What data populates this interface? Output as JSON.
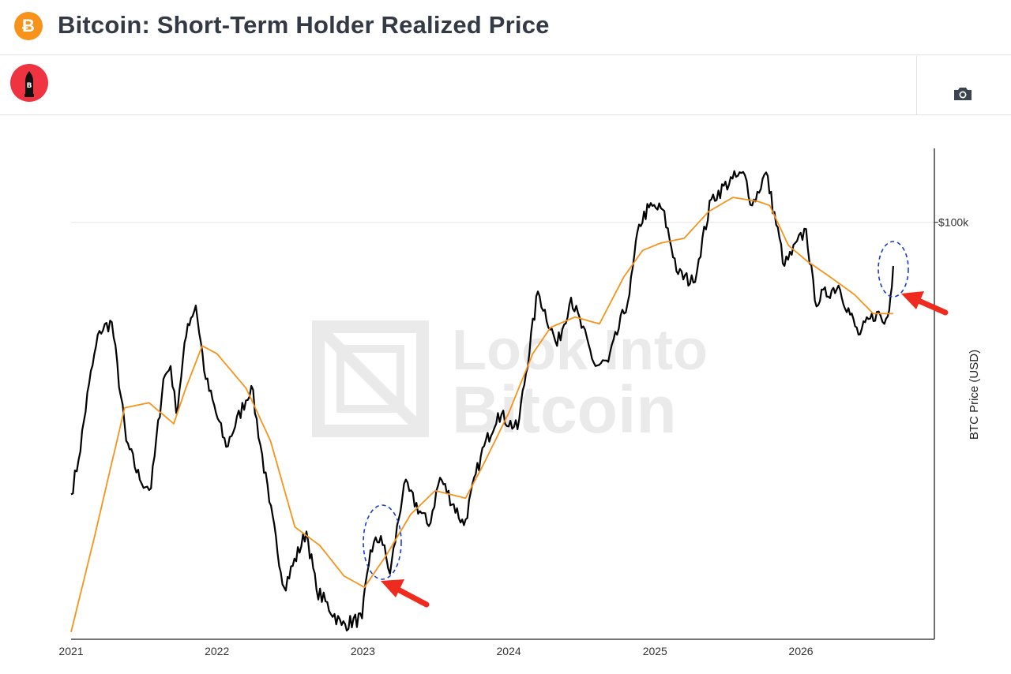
{
  "header": {
    "title": "Bitcoin: Short-Term Holder Realized Price",
    "logo_glyph": "Ƀ",
    "logo_icon": "bitcoin-icon",
    "accent": "#f7931a"
  },
  "toolbar": {
    "brand_icon": "bullet-logo-icon",
    "brand_color": "#ef3340",
    "camera_icon": "camera-icon"
  },
  "chart_data": {
    "type": "line",
    "ylabel": "BTC Price (USD)",
    "yscale": "log",
    "ylim": [
      15000,
      140000
    ],
    "xlim": [
      "2021-01-01",
      "2026-12-01"
    ],
    "y_ticks": [
      {
        "value": 100000,
        "label": "$100k"
      }
    ],
    "x_ticks": [
      "2021",
      "2022",
      "2023",
      "2024",
      "2025",
      "2026"
    ],
    "grid": true,
    "legend": "none",
    "watermark": [
      "Look Into",
      "Bitcoin"
    ],
    "series": [
      {
        "color": "#000000",
        "x": [
          "2021-01-01",
          "2021-01-20",
          "2021-02-15",
          "2021-03-13",
          "2021-04-13",
          "2021-05-19",
          "2021-06-22",
          "2021-07-20",
          "2021-08-20",
          "2021-09-07",
          "2021-09-21",
          "2021-10-20",
          "2021-11-09",
          "2021-12-04",
          "2022-01-24",
          "2022-03-28",
          "2022-05-12",
          "2022-06-18",
          "2022-08-13",
          "2022-09-07",
          "2022-11-09",
          "2022-12-30",
          "2023-01-20",
          "2023-02-15",
          "2023-03-10",
          "2023-04-14",
          "2023-06-15",
          "2023-07-13",
          "2023-09-11",
          "2023-10-23",
          "2023-12-05",
          "2024-01-23",
          "2024-03-14",
          "2024-05-01",
          "2024-06-05",
          "2024-08-05",
          "2024-09-06",
          "2024-10-29",
          "2024-11-22",
          "2024-12-17",
          "2025-01-20",
          "2025-02-28",
          "2025-04-07",
          "2025-05-22",
          "2025-07-14",
          "2025-08-14",
          "2025-09-01",
          "2025-10-06",
          "2025-11-21",
          "2026-01-14",
          "2026-02-05",
          "2026-04-05",
          "2026-05-25",
          "2026-07-10",
          "2026-07-29",
          "2026-08-10",
          "2026-08-20"
        ],
        "y": [
          29000,
          34000,
          48000,
          61000,
          63500,
          37000,
          31000,
          29800,
          49000,
          52000,
          42000,
          63000,
          68500,
          49000,
          36000,
          47500,
          28000,
          19000,
          24500,
          18800,
          16000,
          16500,
          22500,
          24000,
          20200,
          30400,
          25100,
          31300,
          25200,
          34500,
          42000,
          39000,
          73000,
          57000,
          71000,
          52000,
          53000,
          72000,
          99000,
          107000,
          106000,
          79000,
          76000,
          111000,
          122000,
          124000,
          108000,
          125500,
          82000,
          97000,
          70000,
          75000,
          60000,
          66500,
          63000,
          67000,
          82000
        ]
      },
      {
        "color": "#f7931a",
        "x": [
          "2021-01-01",
          "2021-03-01",
          "2021-05-15",
          "2021-07-15",
          "2021-09-15",
          "2021-10-15",
          "2021-11-25",
          "2022-01-01",
          "2022-03-15",
          "2022-05-15",
          "2022-07-15",
          "2022-09-15",
          "2022-11-15",
          "2023-01-05",
          "2023-03-01",
          "2023-05-01",
          "2023-07-01",
          "2023-09-15",
          "2023-11-01",
          "2024-01-01",
          "2024-03-01",
          "2024-04-15",
          "2024-06-15",
          "2024-08-15",
          "2024-10-15",
          "2024-12-01",
          "2025-01-15",
          "2025-03-15",
          "2025-05-15",
          "2025-07-15",
          "2025-09-15",
          "2025-10-15",
          "2025-12-01",
          "2026-01-15",
          "2026-03-15",
          "2026-05-15",
          "2026-07-01",
          "2026-08-20"
        ],
        "y": [
          15500,
          24000,
          43000,
          44000,
          40000,
          47000,
          57000,
          55000,
          47000,
          37000,
          25000,
          23000,
          20000,
          19000,
          22000,
          26500,
          29500,
          28500,
          33500,
          42000,
          55000,
          62000,
          65000,
          63000,
          78000,
          88000,
          91000,
          93000,
          105000,
          112000,
          110000,
          108000,
          90000,
          84000,
          78000,
          72000,
          66000,
          66000
        ]
      }
    ]
  }
}
